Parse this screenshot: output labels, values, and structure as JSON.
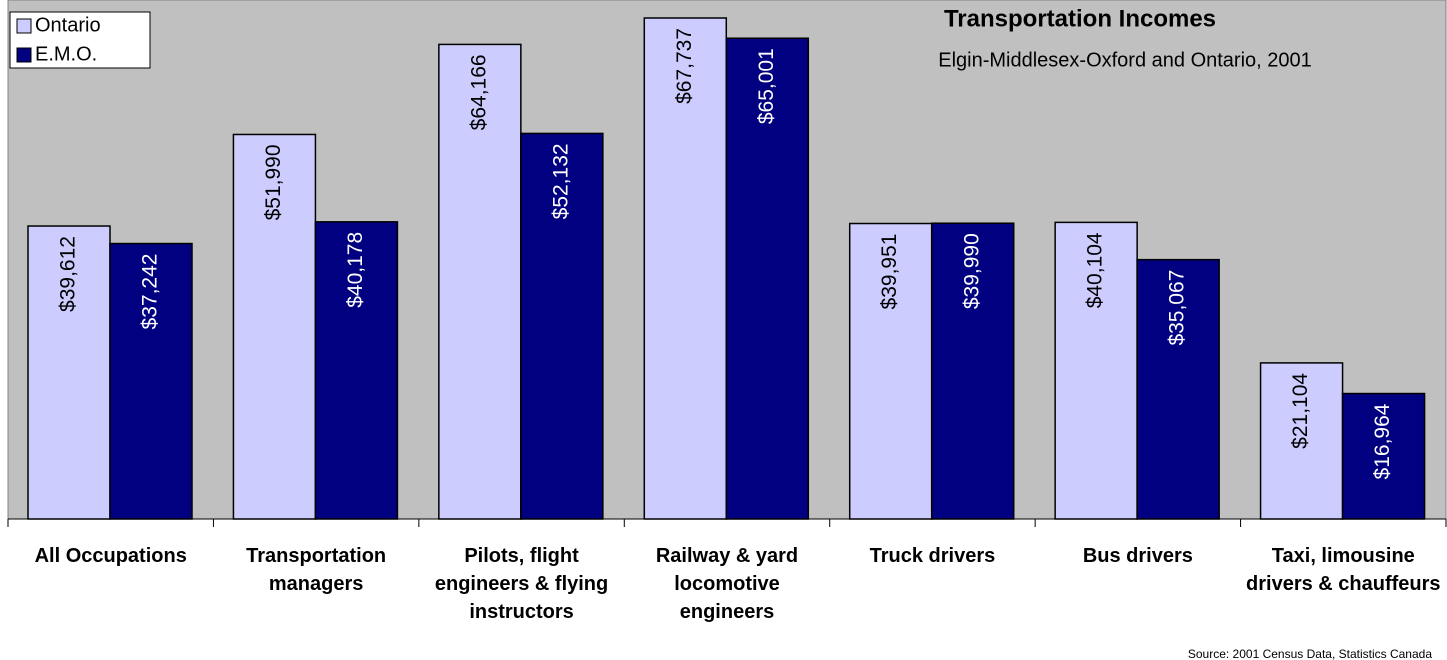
{
  "chart_data": {
    "type": "bar",
    "title": "Transportation Incomes",
    "subtitle": "Elgin-Middlesex-Oxford and Ontario, 2001",
    "source": "Source: 2001 Census  Data, Statistics Canada",
    "categories": [
      "All Occupations",
      "Transportation managers",
      "Pilots, flight engineers & flying instructors",
      "Railway & yard locomotive engineers",
      "Truck drivers",
      "Bus drivers",
      "Taxi, limousine drivers & chauffeurs"
    ],
    "series": [
      {
        "name": "Ontario",
        "color": "#ccccff",
        "values": [
          39612,
          51990,
          64166,
          67737,
          39951,
          40104,
          21104
        ],
        "value_labels": [
          "$39,612",
          "$51,990",
          "$64,166",
          "$67,737",
          "$39,951",
          "$40,104",
          "$21,104"
        ]
      },
      {
        "name": "E.M.O.",
        "color": "#000080",
        "values": [
          37242,
          40178,
          52132,
          65001,
          39990,
          35067,
          16964
        ],
        "value_labels": [
          "$37,242",
          "$40,178",
          "$52,132",
          "$65,001",
          "$39,990",
          "$35,067",
          "$16,964"
        ]
      }
    ],
    "legend": "top-left"
  }
}
